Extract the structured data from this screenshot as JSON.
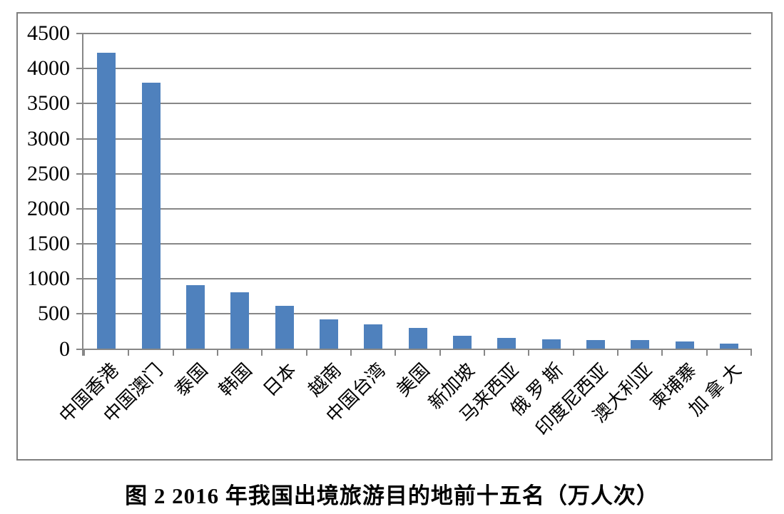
{
  "chart_data": {
    "type": "bar",
    "title": "图 2 2016 年我国出境旅游目的地前十五名（万人次）",
    "unit": "万人次",
    "categories": [
      "中国香港",
      "中国澳门",
      "泰国",
      "韩国",
      "日本",
      "越南",
      "中国台湾",
      "美国",
      "新加坡",
      "马来西亚",
      "俄 罗 斯",
      "印度尼西亚",
      "澳大利亚",
      "柬埔寨",
      "加 拿 大"
    ],
    "values": [
      4230,
      3800,
      910,
      810,
      615,
      420,
      350,
      300,
      190,
      155,
      140,
      130,
      125,
      105,
      75
    ],
    "xlabel": "",
    "ylabel": "",
    "ylim": [
      0,
      4500
    ],
    "ytick_interval": 500,
    "yticks": [
      0,
      500,
      1000,
      1500,
      2000,
      2500,
      3000,
      3500,
      4000,
      4500
    ],
    "grid": true,
    "legend": "none",
    "colors": {
      "bar": "#4f81bd",
      "grid": "#878787",
      "frame": "#7f7f7f",
      "text": "#000000",
      "background": "#ffffff"
    }
  }
}
